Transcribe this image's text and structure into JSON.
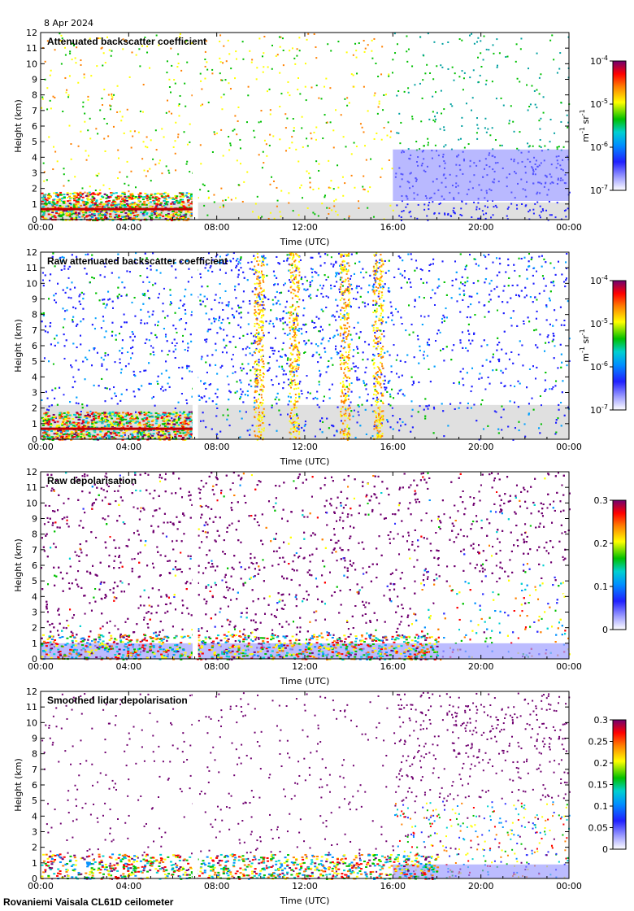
{
  "date_label": "8 Apr 2024",
  "footer": "Rovaniemi Vaisala CL61D ceilometer",
  "colors": {
    "missing": "#e0e0e0",
    "ramp": [
      "#ffffff",
      "#3030ff",
      "#0090ff",
      "#00d0d0",
      "#00c000",
      "#ffff00",
      "#ff8000",
      "#ff0000",
      "#700070"
    ]
  },
  "chart_data": [
    {
      "type": "heatmap",
      "id": "p1",
      "title": "Attenuated backscatter coefficient",
      "xlabel": "Time (UTC)",
      "ylabel": "Height (km)",
      "xticks": [
        "00:00",
        "04:00",
        "08:00",
        "12:00",
        "16:00",
        "20:00",
        "00:00"
      ],
      "xlim": [
        0,
        24
      ],
      "ylim": [
        0,
        12
      ],
      "yticks": [
        "0",
        "1",
        "2",
        "3",
        "4",
        "5",
        "6",
        "7",
        "8",
        "9",
        "10",
        "11",
        "12"
      ],
      "colorbar": {
        "scale": "log",
        "range": [
          1e-07,
          0.0001
        ],
        "ticks": [
          {
            "base": "10",
            "exp": "-7"
          },
          {
            "base": "10",
            "exp": "-6"
          },
          {
            "base": "10",
            "exp": "-5"
          },
          {
            "base": "10",
            "exp": "-4"
          }
        ],
        "unit": {
          "a": "m",
          "a_exp": "-1",
          "b": "sr",
          "b_exp": "-1"
        }
      },
      "data_gap_hours": [
        6.9,
        7.15
      ]
    },
    {
      "type": "heatmap",
      "id": "p2",
      "title": "Raw attenuated backscatter coefficient",
      "xlabel": "Time (UTC)",
      "ylabel": "Height (km)",
      "xticks": [
        "00:00",
        "04:00",
        "08:00",
        "12:00",
        "16:00",
        "20:00",
        "00:00"
      ],
      "xlim": [
        0,
        24
      ],
      "ylim": [
        0,
        12
      ],
      "yticks": [
        "0",
        "1",
        "2",
        "3",
        "4",
        "5",
        "6",
        "7",
        "8",
        "9",
        "10",
        "11",
        "12"
      ],
      "colorbar": {
        "scale": "log",
        "range": [
          1e-07,
          0.0001
        ],
        "ticks": [
          {
            "base": "10",
            "exp": "-7"
          },
          {
            "base": "10",
            "exp": "-6"
          },
          {
            "base": "10",
            "exp": "-5"
          },
          {
            "base": "10",
            "exp": "-4"
          }
        ],
        "unit": {
          "a": "m",
          "a_exp": "-1",
          "b": "sr",
          "b_exp": "-1"
        }
      },
      "data_gap_hours": [
        6.9,
        7.15
      ]
    },
    {
      "type": "heatmap",
      "id": "p3",
      "title": "Raw depolarisation",
      "xlabel": "Time (UTC)",
      "ylabel": "Height (km)",
      "xticks": [
        "00:00",
        "04:00",
        "08:00",
        "12:00",
        "16:00",
        "20:00",
        "00:00"
      ],
      "xlim": [
        0,
        24
      ],
      "ylim": [
        0,
        12
      ],
      "yticks": [
        "0",
        "1",
        "2",
        "3",
        "4",
        "5",
        "6",
        "7",
        "8",
        "9",
        "10",
        "11",
        "12"
      ],
      "colorbar": {
        "scale": "linear",
        "range": [
          0,
          0.3
        ],
        "ticks": [
          "0",
          "0.1",
          "0.2",
          "0.3"
        ]
      },
      "data_gap_hours": [
        6.9,
        7.15
      ]
    },
    {
      "type": "heatmap",
      "id": "p4",
      "title": "Smoothed lidar depolarisation",
      "xlabel": "Time (UTC)",
      "ylabel": "Height (km)",
      "xticks": [
        "00:00",
        "04:00",
        "08:00",
        "12:00",
        "16:00",
        "20:00",
        "00:00"
      ],
      "xlim": [
        0,
        24
      ],
      "ylim": [
        0,
        12
      ],
      "yticks": [
        "0",
        "1",
        "2",
        "3",
        "4",
        "5",
        "6",
        "7",
        "8",
        "9",
        "10",
        "11",
        "12"
      ],
      "colorbar": {
        "scale": "linear",
        "range": [
          0,
          0.3
        ],
        "ticks": [
          "0",
          "0.05",
          "0.1",
          "0.15",
          "0.2",
          "0.25",
          "0.3"
        ]
      },
      "data_gap_hours": [
        6.9,
        7.15
      ]
    }
  ]
}
